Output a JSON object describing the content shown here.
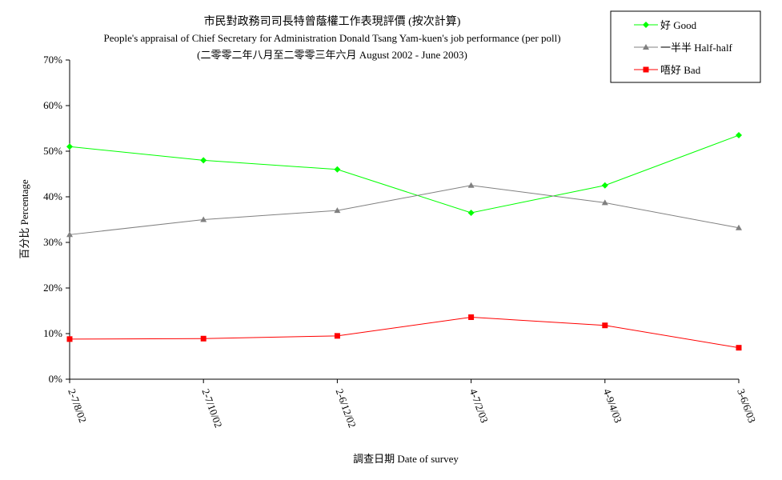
{
  "chart_data": {
    "type": "line",
    "title": "市民對政務司司長特曾蔭權工作表現評價 (按次計算)",
    "subtitle": "People's appraisal of Chief Secretary for Administration Donald Tsang Yam-kuen's job performance (per poll)",
    "subtitle2": "(二零零二年八月至二零零三年六月 August 2002 - June 2003)",
    "x_label": "調查日期 Date of survey",
    "y_label": "百分比 Percentage",
    "categories": [
      "2-7/8/02",
      "2-7/10/02",
      "2-6/12/02",
      "4-7/2/03",
      "4-9/4/03",
      "3-6/6/03"
    ],
    "series": [
      {
        "name": "好 Good",
        "color": "#00ff00",
        "marker": "diamond",
        "values": [
          51,
          48,
          46,
          36.5,
          42.5,
          53.5
        ]
      },
      {
        "name": "一半半 Half-half",
        "color": "#808080",
        "marker": "triangle",
        "values": [
          31.7,
          35,
          37,
          42.5,
          38.7,
          33.2
        ]
      },
      {
        "name": "唔好 Bad",
        "color": "#ff0000",
        "marker": "square",
        "values": [
          8.8,
          8.9,
          9.5,
          13.6,
          11.8,
          6.9
        ]
      }
    ],
    "ylim": [
      0,
      70
    ],
    "yticks": [
      {
        "value": 0,
        "label": "0%"
      },
      {
        "value": 10,
        "label": "10%"
      },
      {
        "value": 20,
        "label": "20%"
      },
      {
        "value": 30,
        "label": "30%"
      },
      {
        "value": 40,
        "label": "40%"
      },
      {
        "value": 50,
        "label": "50%"
      },
      {
        "value": 60,
        "label": "60%"
      },
      {
        "value": 70,
        "label": "70%"
      }
    ],
    "legend": "top-right"
  }
}
